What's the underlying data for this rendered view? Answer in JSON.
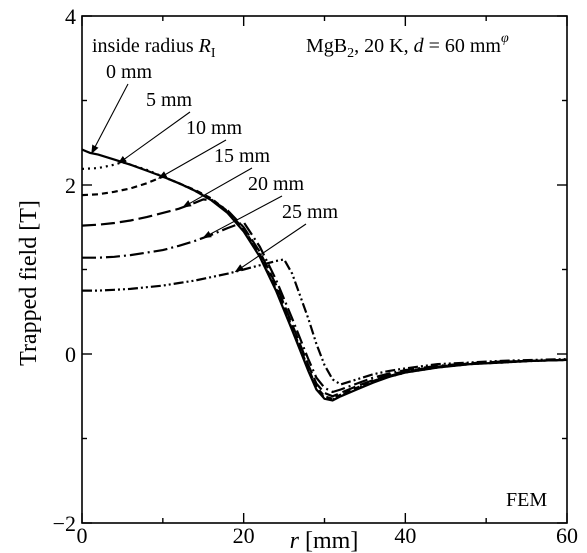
{
  "chart_data": {
    "type": "line",
    "xlabel_italic": "r",
    "xlabel_rest": " [mm]",
    "ylabel": "Trapped field [T]",
    "xlim": [
      0,
      60
    ],
    "ylim": [
      -2,
      4
    ],
    "xticks": [
      0,
      20,
      40,
      60
    ],
    "xtick_labels": [
      "0",
      "20",
      "40",
      "60"
    ],
    "yticks": [
      -2,
      0,
      2,
      4
    ],
    "ytick_labels": [
      "−2",
      "0",
      "2",
      "4"
    ],
    "grid": false,
    "legend_title_text": "inside radius ",
    "legend_title_var": "R",
    "legend_title_sub": "I",
    "info_material": "MgB",
    "info_material_sub": "2",
    "info_rest_a": ", 20 K, ",
    "info_var": "d",
    "info_rest_b": " = 60 mm",
    "info_sup": "φ",
    "method_label": "FEM",
    "series": [
      {
        "name": "0 mm",
        "dash": "",
        "x": [
          0,
          0.5,
          1,
          2,
          4,
          6,
          8,
          10,
          12,
          14,
          16,
          18,
          20,
          22,
          24,
          26,
          28,
          29,
          30,
          31,
          32,
          34,
          36,
          38,
          40,
          44,
          48,
          52,
          56,
          60
        ],
        "y": [
          2.42,
          2.4,
          2.38,
          2.36,
          2.3,
          2.24,
          2.17,
          2.1,
          2.02,
          1.93,
          1.82,
          1.67,
          1.45,
          1.15,
          0.75,
          0.28,
          -0.2,
          -0.42,
          -0.53,
          -0.55,
          -0.5,
          -0.42,
          -0.34,
          -0.27,
          -0.22,
          -0.16,
          -0.12,
          -0.1,
          -0.08,
          -0.07
        ]
      },
      {
        "name": "5 mm",
        "dash": "2,4",
        "x": [
          0,
          2,
          4,
          5,
          6,
          8,
          10,
          12,
          14,
          16,
          18,
          20,
          22,
          24,
          26,
          28,
          29,
          30,
          31,
          32,
          34,
          36,
          38,
          40,
          44,
          48,
          52,
          56,
          60
        ],
        "y": [
          2.19,
          2.2,
          2.24,
          2.27,
          2.24,
          2.18,
          2.1,
          2.02,
          1.93,
          1.83,
          1.68,
          1.46,
          1.16,
          0.76,
          0.29,
          -0.19,
          -0.41,
          -0.52,
          -0.54,
          -0.49,
          -0.41,
          -0.33,
          -0.27,
          -0.22,
          -0.16,
          -0.12,
          -0.1,
          -0.08,
          -0.07
        ]
      },
      {
        "name": "10 mm",
        "dash": "6,4",
        "x": [
          0,
          2,
          4,
          6,
          8,
          10,
          12,
          14,
          16,
          18,
          20,
          22,
          24,
          26,
          28,
          29,
          30,
          31,
          32,
          34,
          36,
          38,
          40,
          44,
          48,
          52,
          56,
          60
        ],
        "y": [
          1.88,
          1.89,
          1.92,
          1.96,
          2.02,
          2.1,
          2.02,
          1.94,
          1.84,
          1.69,
          1.48,
          1.18,
          0.78,
          0.31,
          -0.17,
          -0.39,
          -0.5,
          -0.53,
          -0.48,
          -0.4,
          -0.32,
          -0.26,
          -0.21,
          -0.15,
          -0.12,
          -0.1,
          -0.08,
          -0.07
        ]
      },
      {
        "name": "15 mm",
        "dash": "14,5",
        "x": [
          0,
          2,
          4,
          6,
          8,
          10,
          12,
          14,
          15,
          16,
          18,
          20,
          22,
          24,
          26,
          28,
          29,
          30,
          31,
          32,
          34,
          36,
          38,
          40,
          44,
          48,
          52,
          56,
          60
        ],
        "y": [
          1.52,
          1.53,
          1.55,
          1.58,
          1.62,
          1.67,
          1.72,
          1.79,
          1.83,
          1.82,
          1.7,
          1.5,
          1.21,
          0.82,
          0.35,
          -0.13,
          -0.35,
          -0.46,
          -0.5,
          -0.46,
          -0.38,
          -0.31,
          -0.25,
          -0.2,
          -0.15,
          -0.11,
          -0.09,
          -0.08,
          -0.07
        ]
      },
      {
        "name": "20 mm",
        "dash": "14,4,2,4",
        "x": [
          0,
          2,
          4,
          6,
          8,
          10,
          12,
          14,
          16,
          18,
          20,
          22,
          24,
          26,
          28,
          29,
          30,
          31,
          32,
          34,
          36,
          38,
          40,
          44,
          48,
          52,
          56,
          60
        ],
        "y": [
          1.14,
          1.14,
          1.15,
          1.17,
          1.2,
          1.23,
          1.28,
          1.34,
          1.41,
          1.49,
          1.56,
          1.27,
          0.88,
          0.42,
          -0.06,
          -0.28,
          -0.4,
          -0.45,
          -0.42,
          -0.35,
          -0.28,
          -0.23,
          -0.19,
          -0.14,
          -0.11,
          -0.09,
          -0.08,
          -0.07
        ]
      },
      {
        "name": "25 mm",
        "dash": "10,3,2,3,2,3",
        "x": [
          0,
          2,
          4,
          6,
          8,
          10,
          12,
          14,
          16,
          18,
          20,
          22,
          24,
          25,
          26,
          28,
          29,
          30,
          31,
          32,
          34,
          36,
          38,
          40,
          44,
          48,
          52,
          56,
          60
        ],
        "y": [
          0.75,
          0.75,
          0.76,
          0.77,
          0.79,
          0.81,
          0.84,
          0.87,
          0.91,
          0.95,
          1.0,
          1.05,
          1.1,
          1.12,
          0.95,
          0.42,
          0.12,
          -0.13,
          -0.3,
          -0.36,
          -0.3,
          -0.24,
          -0.2,
          -0.17,
          -0.12,
          -0.1,
          -0.08,
          -0.07,
          -0.06
        ]
      }
    ]
  }
}
